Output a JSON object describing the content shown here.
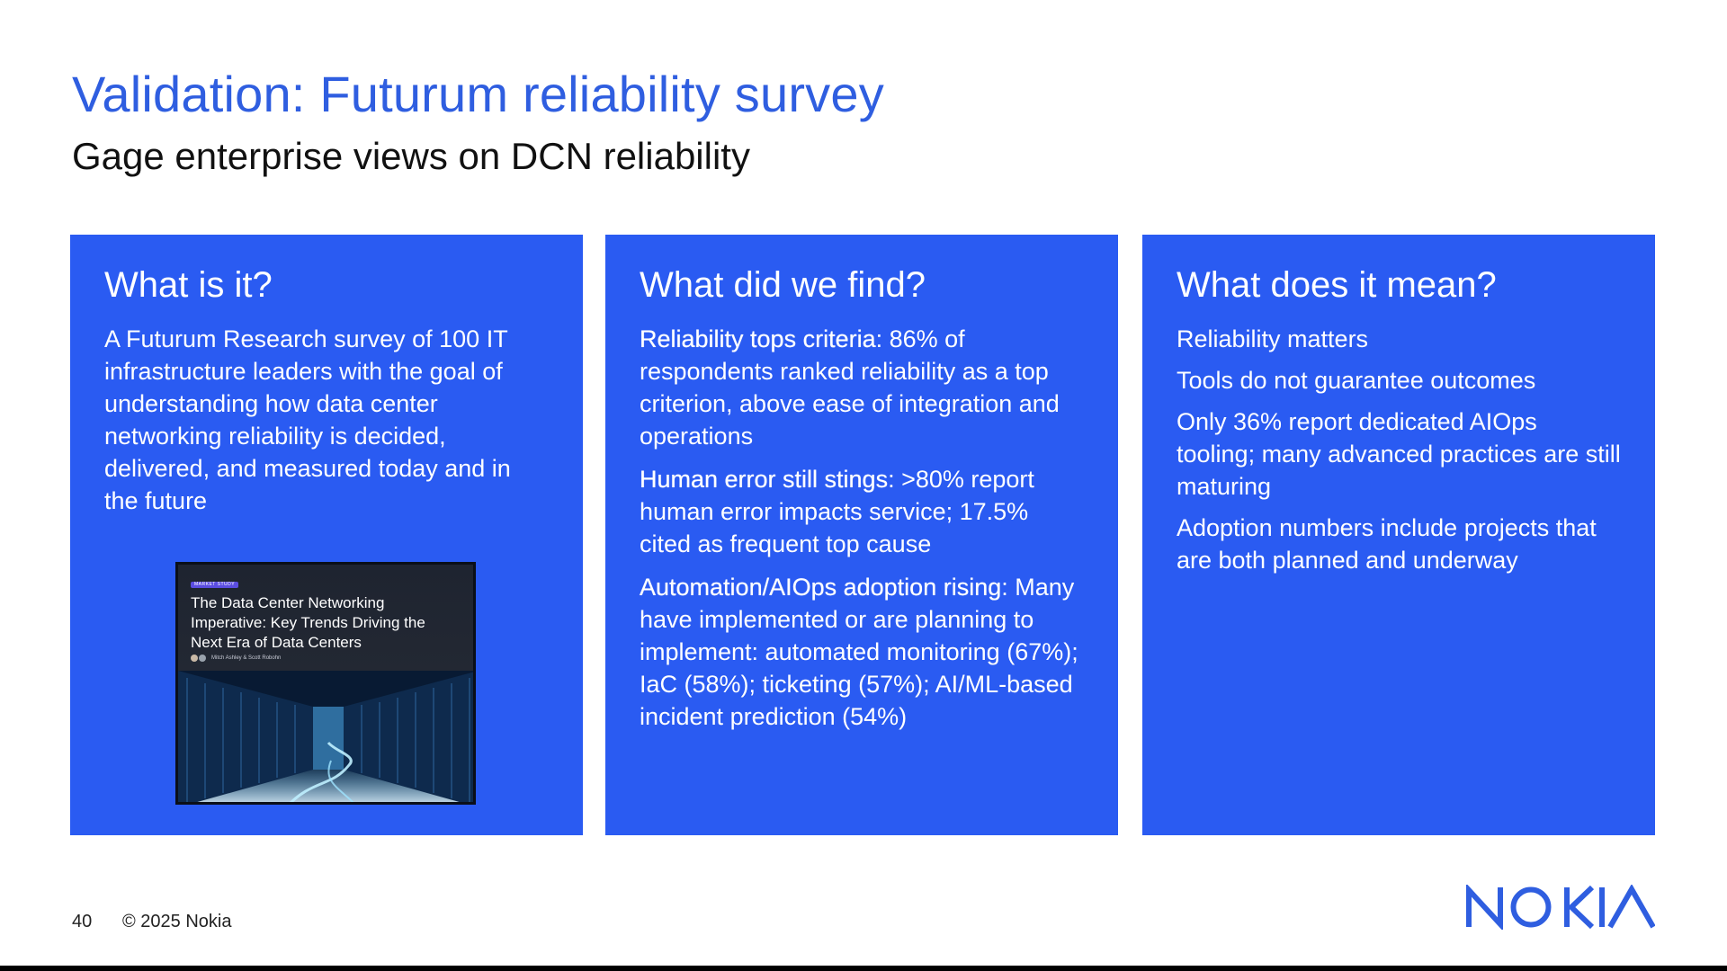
{
  "slide": {
    "title": "Validation: Futurum reliability survey",
    "subtitle": "Gage enterprise views on DCN reliability"
  },
  "cards": [
    {
      "heading": "What is it?",
      "body": "A Futurum Research survey of 100 IT infrastructure leaders with the goal of understanding how data center networking reliability is decided, delivered, and measured today and in the future"
    },
    {
      "heading": "What did we find?",
      "points": [
        {
          "lead": "Reliability tops criteria",
          "text": ": 86% of respondents ranked reliability as a top criterion, above ease of integration and operations"
        },
        {
          "lead": "Human error still stings",
          "text": ": >80% report human error impacts service; 17.5% cited as frequent top cause"
        },
        {
          "lead": "Automation/AIOps adoption rising",
          "text": ": Many have implemented or are planning to implement: automated monitoring (67%); IaC (58%); ticketing (57%); AI/ML-based incident prediction (54%)"
        }
      ]
    },
    {
      "heading": "What does it mean?",
      "points": [
        "Reliability matters",
        "Tools do not guarantee outcomes",
        "Only 36% report dedicated AIOps tooling; many advanced practices are still maturing",
        "Adoption numbers include projects that are both planned and underway"
      ]
    }
  ],
  "report_cover": {
    "badge": "MARKET STUDY",
    "title": "The Data Center Networking Imperative: Key Trends Driving the Next Era of Data Centers",
    "authors": "Mitch Ashley & Scott Robohn",
    "image_icon": "data-center-aisle-image"
  },
  "footer": {
    "page_number": "40",
    "copyright": "© 2025 Nokia"
  },
  "brand": {
    "logo_text": "NOKIA",
    "logo_icon": "nokia-logo",
    "accent_color": "#2a5bf2",
    "title_color": "#2f5ee0"
  }
}
